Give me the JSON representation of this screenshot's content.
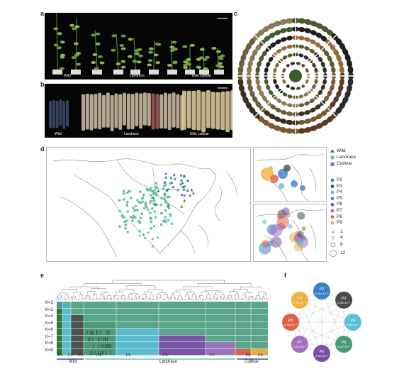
{
  "panels": {
    "a": "a",
    "b": "b",
    "c": "c",
    "d": "d",
    "e": "e",
    "f": "f"
  },
  "panel_a": {
    "wild": "Wild",
    "landrace": "Landrace",
    "elite": "Elite cultivar"
  },
  "panel_b": {
    "wild": "Wild",
    "landrace": "Landrace",
    "elite": "Elite cultivar"
  },
  "panel_d": {
    "legend_types": [
      "Wild",
      "Landrace",
      "Cultivar"
    ],
    "legend_pops": [
      "P2",
      "P3",
      "P4",
      "P5",
      "P6",
      "P7",
      "P8",
      "P9"
    ],
    "legend_sizes": [
      "1",
      "4",
      "8",
      "12"
    ]
  },
  "panel_e": {
    "k_labels": [
      "K=2",
      "K=3",
      "K=4",
      "K=5",
      "K=6",
      "K=7",
      "K=8",
      "K=9"
    ],
    "pop_labels": [
      "P1",
      "P2",
      "P3",
      "P4",
      "P5",
      "P6",
      "P7",
      "P8",
      "P9"
    ],
    "groups": {
      "wild": "Wild",
      "landrace": "Landrace",
      "cultivar": "Cultivar"
    }
  },
  "panel_f": {
    "nodes": [
      {
        "id": "P2",
        "val": "0.46×10⁻³"
      },
      {
        "id": "P3",
        "val": "0.38×10⁻³"
      },
      {
        "id": "P4",
        "val": "0.38×10⁻³"
      },
      {
        "id": "P5",
        "val": "0.30×10⁻³"
      },
      {
        "id": "P6",
        "val": "0.36×10⁻³"
      },
      {
        "id": "P7",
        "val": "0.31×10⁻³"
      },
      {
        "id": "P8",
        "val": "0.28×10⁻³"
      },
      {
        "id": "P9",
        "val": "0.30×10⁻³"
      }
    ]
  },
  "colors": {
    "wild": "#2e8b57",
    "landrace": "#66c2a5",
    "cultivar": "#6a7fbf",
    "P2": "#3b7fc4",
    "P3": "#4a4a4a",
    "P4": "#5bbfd6",
    "P5": "#4a9a7a",
    "P6": "#7b4fa8",
    "P7": "#a070c0",
    "P8": "#e0604a",
    "P9": "#f0b040"
  }
}
